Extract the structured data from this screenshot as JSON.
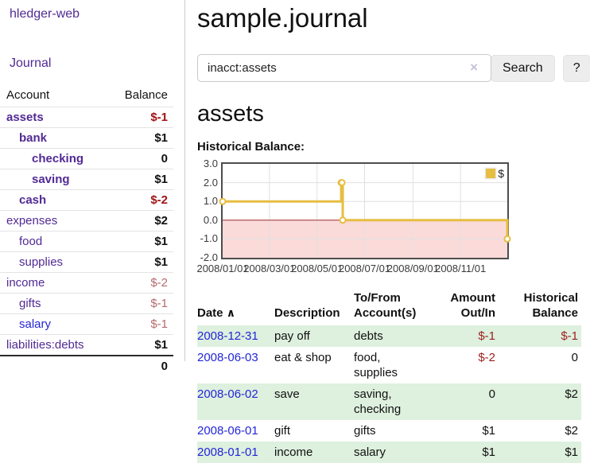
{
  "app": {
    "brand": "hledger-web"
  },
  "sidebar": {
    "nav_journal": "Journal",
    "accounts_table": {
      "header_account": "Account",
      "header_balance": "Balance",
      "rows": [
        {
          "account": "assets",
          "balance": "$-1",
          "indent": 1,
          "bold": true,
          "balance_style": "neg-strong"
        },
        {
          "account": "bank",
          "balance": "$1",
          "indent": 2,
          "bold": true,
          "balance_style": "pos"
        },
        {
          "account": "checking",
          "balance": "0",
          "indent": 3,
          "bold": true,
          "balance_style": "pos"
        },
        {
          "account": "saving",
          "balance": "$1",
          "indent": 3,
          "bold": true,
          "balance_style": "pos"
        },
        {
          "account": "cash",
          "balance": "$-2",
          "indent": 2,
          "bold": true,
          "balance_style": "neg-strong"
        },
        {
          "account": "expenses",
          "balance": "$2",
          "indent": 1,
          "bold": false,
          "balance_style": "pos"
        },
        {
          "account": "food",
          "balance": "$1",
          "indent": 2,
          "bold": false,
          "balance_style": "pos"
        },
        {
          "account": "supplies",
          "balance": "$1",
          "indent": 2,
          "bold": false,
          "balance_style": "pos"
        },
        {
          "account": "income",
          "balance": "$-2",
          "indent": 1,
          "bold": false,
          "balance_style": "neg-soft"
        },
        {
          "account": "gifts",
          "balance": "$-1",
          "indent": 2,
          "bold": false,
          "balance_style": "neg-soft"
        },
        {
          "account": "salary",
          "balance": "$-1",
          "indent": 2,
          "bold": false,
          "balance_style": "neg-soft",
          "link_color": "blue"
        },
        {
          "account": "liabilities:debts",
          "balance": "$1",
          "indent": 1,
          "bold": false,
          "balance_style": "pos"
        }
      ],
      "total": "0"
    }
  },
  "main": {
    "title": "sample.journal",
    "search": {
      "value": "inacct:assets",
      "clear_icon": "×",
      "search_button": "Search",
      "help_button": "?"
    },
    "account_heading": "assets",
    "chart_heading": "Historical Balance:"
  },
  "chart_data": {
    "type": "line",
    "step": true,
    "title": "Historical Balance:",
    "xdomain": [
      "2008-01-01",
      "2008-12-31"
    ],
    "ylim": [
      -2,
      3
    ],
    "yticks": [
      3,
      2,
      1,
      0,
      -1,
      -2
    ],
    "xticks": [
      "2008/01/01",
      "2008/03/01",
      "2008/05/01",
      "2008/07/01",
      "2008/09/01",
      "2008/11/01"
    ],
    "series": [
      {
        "name": "$",
        "color": "#e6be42",
        "points": [
          [
            "2008-01-01",
            1
          ],
          [
            "2008-06-01",
            2
          ],
          [
            "2008-06-02",
            2
          ],
          [
            "2008-06-03",
            0
          ],
          [
            "2008-12-31",
            -1
          ]
        ]
      }
    ],
    "legend_position": "top-right",
    "grid": true,
    "grid_color": "#e0e0e0",
    "negative_fill": "#fbdada",
    "zero_line_color": "#9e2a2a",
    "border_color": "#4d4d4d"
  },
  "register": {
    "headers": {
      "date": "Date",
      "sort_indicator": "∧",
      "description": "Description",
      "accounts": "To/From Account(s)",
      "amount": "Amount Out/In",
      "balance": "Historical Balance"
    },
    "rows": [
      {
        "date": "2008-12-31",
        "description": "pay off",
        "accounts": "debts",
        "amount": "$-1",
        "balance": "$-1"
      },
      {
        "date": "2008-06-03",
        "description": "eat & shop",
        "accounts": "food, supplies",
        "amount": "$-2",
        "balance": "0"
      },
      {
        "date": "2008-06-02",
        "description": "save",
        "accounts": "saving, checking",
        "amount": "0",
        "balance": "$2"
      },
      {
        "date": "2008-06-01",
        "description": "gift",
        "accounts": "gifts",
        "amount": "$1",
        "balance": "$2"
      },
      {
        "date": "2008-01-01",
        "description": "income",
        "accounts": "salary",
        "amount": "$1",
        "balance": "$1"
      }
    ]
  }
}
